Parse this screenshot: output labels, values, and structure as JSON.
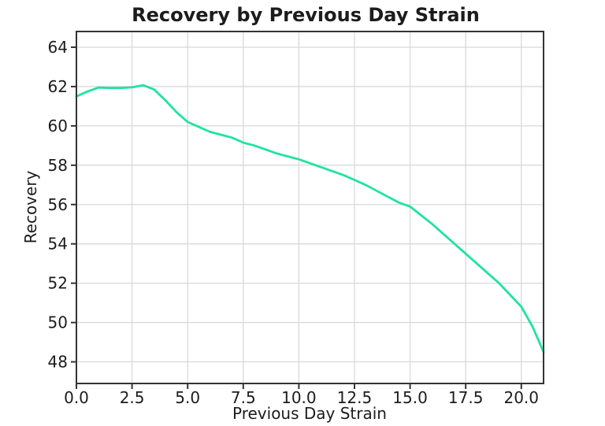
{
  "figure": {
    "title": "Recovery by Previous Day Strain"
  },
  "chart_data": {
    "type": "line",
    "title": "Recovery by Previous Day Strain",
    "xlabel": "Previous Day Strain",
    "ylabel": "Recovery",
    "xlim": [
      0,
      21
    ],
    "ylim": [
      46.9,
      64.8
    ],
    "xticks": [
      0,
      2.5,
      5,
      7.5,
      10,
      12.5,
      15,
      17.5,
      20
    ],
    "xtick_labels": [
      "0.0",
      "2.5",
      "5.0",
      "7.5",
      "10.0",
      "12.5",
      "15.0",
      "17.5",
      "20.0"
    ],
    "yticks": [
      48,
      50,
      52,
      54,
      56,
      58,
      60,
      62,
      64
    ],
    "ytick_labels": [
      "48",
      "50",
      "52",
      "54",
      "56",
      "58",
      "60",
      "62",
      "64"
    ],
    "grid": true,
    "legend": false,
    "colors": {
      "line": "#1fe3a1",
      "grid": "#d9d9d9",
      "spine": "#333333",
      "text": "#1c1c1c",
      "background": "#ffffff"
    },
    "series": [
      {
        "name": "Recovery",
        "x": [
          0,
          0.5,
          1,
          1.5,
          2,
          2.5,
          3,
          3.5,
          4,
          4.5,
          5,
          5.5,
          6,
          6.5,
          7,
          7.5,
          8,
          8.5,
          9,
          9.5,
          10,
          10.5,
          11,
          11.5,
          12,
          12.5,
          13,
          13.5,
          14,
          14.5,
          15,
          15.5,
          16,
          16.5,
          17,
          17.5,
          18,
          18.5,
          19,
          19.5,
          20,
          20.5,
          21
        ],
        "y": [
          61.5,
          61.75,
          61.95,
          61.93,
          61.93,
          61.96,
          62.07,
          61.85,
          61.3,
          60.7,
          60.2,
          59.95,
          59.7,
          59.55,
          59.4,
          59.15,
          59.0,
          58.8,
          58.6,
          58.45,
          58.3,
          58.1,
          57.9,
          57.7,
          57.5,
          57.25,
          57.0,
          56.7,
          56.4,
          56.1,
          55.9,
          55.45,
          55.0,
          54.5,
          54.0,
          53.5,
          53.0,
          52.5,
          52.0,
          51.4,
          50.8,
          49.8,
          48.5
        ]
      }
    ]
  }
}
